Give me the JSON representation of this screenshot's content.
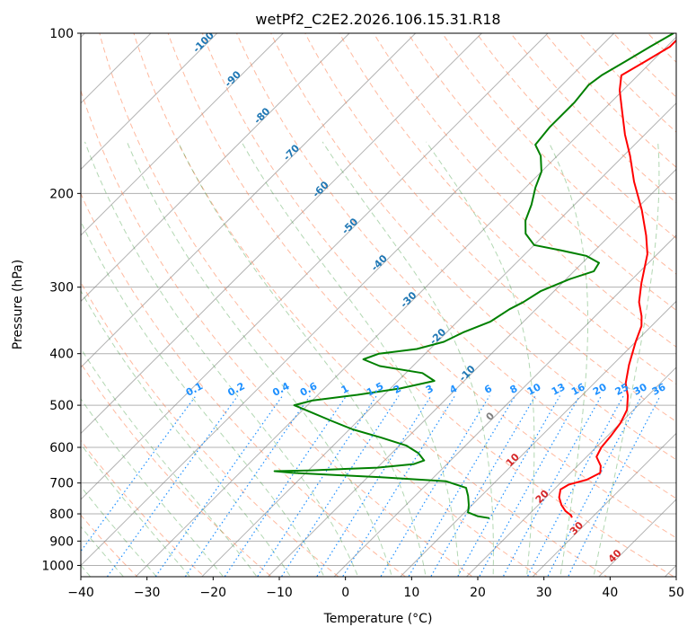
{
  "chart_data": {
    "type": "line",
    "title": "wetPf2_C2E2.2026.106.15.31.R18",
    "xlabel": "Temperature (°C)",
    "ylabel": "Pressure (hPa)",
    "xlim": [
      -40,
      50
    ],
    "ylim": [
      1050,
      100
    ],
    "y_scale": "log",
    "grid": true,
    "x_ticks": [
      -40,
      -30,
      -20,
      -10,
      0,
      10,
      20,
      30,
      40,
      50
    ],
    "y_ticks": [
      100,
      200,
      300,
      400,
      500,
      600,
      700,
      800,
      900,
      1000
    ],
    "skew": true,
    "series": [
      {
        "color": "#ff0000",
        "points": [
          [
            27.0,
            813
          ],
          [
            26.5,
            805
          ],
          [
            25.0,
            790
          ],
          [
            23.5,
            770
          ],
          [
            22.0,
            745
          ],
          [
            21.0,
            720
          ],
          [
            21.5,
            705
          ],
          [
            23.5,
            690
          ],
          [
            24.5,
            670
          ],
          [
            23.5,
            650
          ],
          [
            21.5,
            625
          ],
          [
            20.8,
            600
          ],
          [
            20.5,
            570
          ],
          [
            20.0,
            540
          ],
          [
            19.0,
            510
          ],
          [
            17.0,
            480
          ],
          [
            14.8,
            455
          ],
          [
            12.5,
            420
          ],
          [
            10.0,
            380
          ],
          [
            8.5,
            355
          ],
          [
            7.0,
            340
          ],
          [
            4.5,
            320
          ],
          [
            2.0,
            295
          ],
          [
            -1.5,
            260
          ],
          [
            -4.5,
            240
          ],
          [
            -9.0,
            215
          ],
          [
            -14.5,
            190
          ],
          [
            -19.0,
            170
          ],
          [
            -23.0,
            155
          ],
          [
            -27.0,
            140
          ],
          [
            -30.5,
            128
          ],
          [
            -32.5,
            120
          ],
          [
            -31.0,
            113
          ],
          [
            -29.5,
            106
          ],
          [
            -29.5,
            100
          ]
        ]
      },
      {
        "color": "#008000",
        "points": [
          [
            14.6,
            815
          ],
          [
            12.5,
            808
          ],
          [
            10.5,
            795
          ],
          [
            9.5,
            770
          ],
          [
            8.0,
            740
          ],
          [
            6.5,
            715
          ],
          [
            2.5,
            695
          ],
          [
            -8.0,
            683
          ],
          [
            -22.0,
            670
          ],
          [
            -25.0,
            665
          ],
          [
            -20.0,
            663
          ],
          [
            -10.0,
            655
          ],
          [
            -5.0,
            645
          ],
          [
            -4.0,
            635
          ],
          [
            -6.0,
            615
          ],
          [
            -9.0,
            595
          ],
          [
            -14.0,
            575
          ],
          [
            -19.5,
            555
          ],
          [
            -24.0,
            535
          ],
          [
            -28.5,
            515
          ],
          [
            -32.0,
            500
          ],
          [
            -30.0,
            490
          ],
          [
            -24.0,
            478
          ],
          [
            -18.5,
            465
          ],
          [
            -14.5,
            450
          ],
          [
            -17.5,
            435
          ],
          [
            -25.0,
            422
          ],
          [
            -28.5,
            410
          ],
          [
            -27.0,
            400
          ],
          [
            -22.0,
            392
          ],
          [
            -19.0,
            380
          ],
          [
            -17.5,
            365
          ],
          [
            -15.0,
            348
          ],
          [
            -14.0,
            330
          ],
          [
            -13.0,
            320
          ],
          [
            -12.0,
            305
          ],
          [
            -9.5,
            290
          ],
          [
            -7.0,
            280
          ],
          [
            -7.5,
            270
          ],
          [
            -10.5,
            262
          ],
          [
            -15.0,
            256
          ],
          [
            -20.0,
            250
          ],
          [
            -23.0,
            238
          ],
          [
            -25.0,
            225
          ],
          [
            -26.5,
            210
          ],
          [
            -28.5,
            195
          ],
          [
            -30.0,
            182
          ],
          [
            -32.5,
            170
          ],
          [
            -35.0,
            162
          ],
          [
            -35.5,
            150
          ],
          [
            -35.5,
            135
          ],
          [
            -36.0,
            125
          ],
          [
            -35.5,
            120
          ],
          [
            -34.0,
            113
          ],
          [
            -32.5,
            106
          ],
          [
            -31.0,
            100
          ]
        ]
      }
    ],
    "dry_adiabat_labels": [
      "0",
      "10",
      "20",
      "30",
      "40"
    ],
    "moist_adiabat_labels": [
      "-100",
      "-90",
      "-80",
      "-70",
      "-60",
      "-50",
      "-40",
      "-30",
      "-20",
      "-10"
    ],
    "mixing_ratio_labels": [
      "0.1",
      "0.2",
      "0.4",
      "0.6",
      "1",
      "1.5",
      "2",
      "3",
      "4",
      "6",
      "8",
      "10",
      "13",
      "16",
      "20",
      "25",
      "30",
      "36"
    ],
    "colors": {
      "temperature": "#ff0000",
      "dewpoint": "#008000",
      "isotherm": "#808080",
      "dry_adiabat": "#ff7f50",
      "moist_adiabat": "#228b22",
      "mixing_ratio": "#1e90ff",
      "dry_label": "#d62728",
      "moist_label": "#1f77b4",
      "mixing_label": "#1e90ff",
      "zero_label": "#808080"
    }
  }
}
